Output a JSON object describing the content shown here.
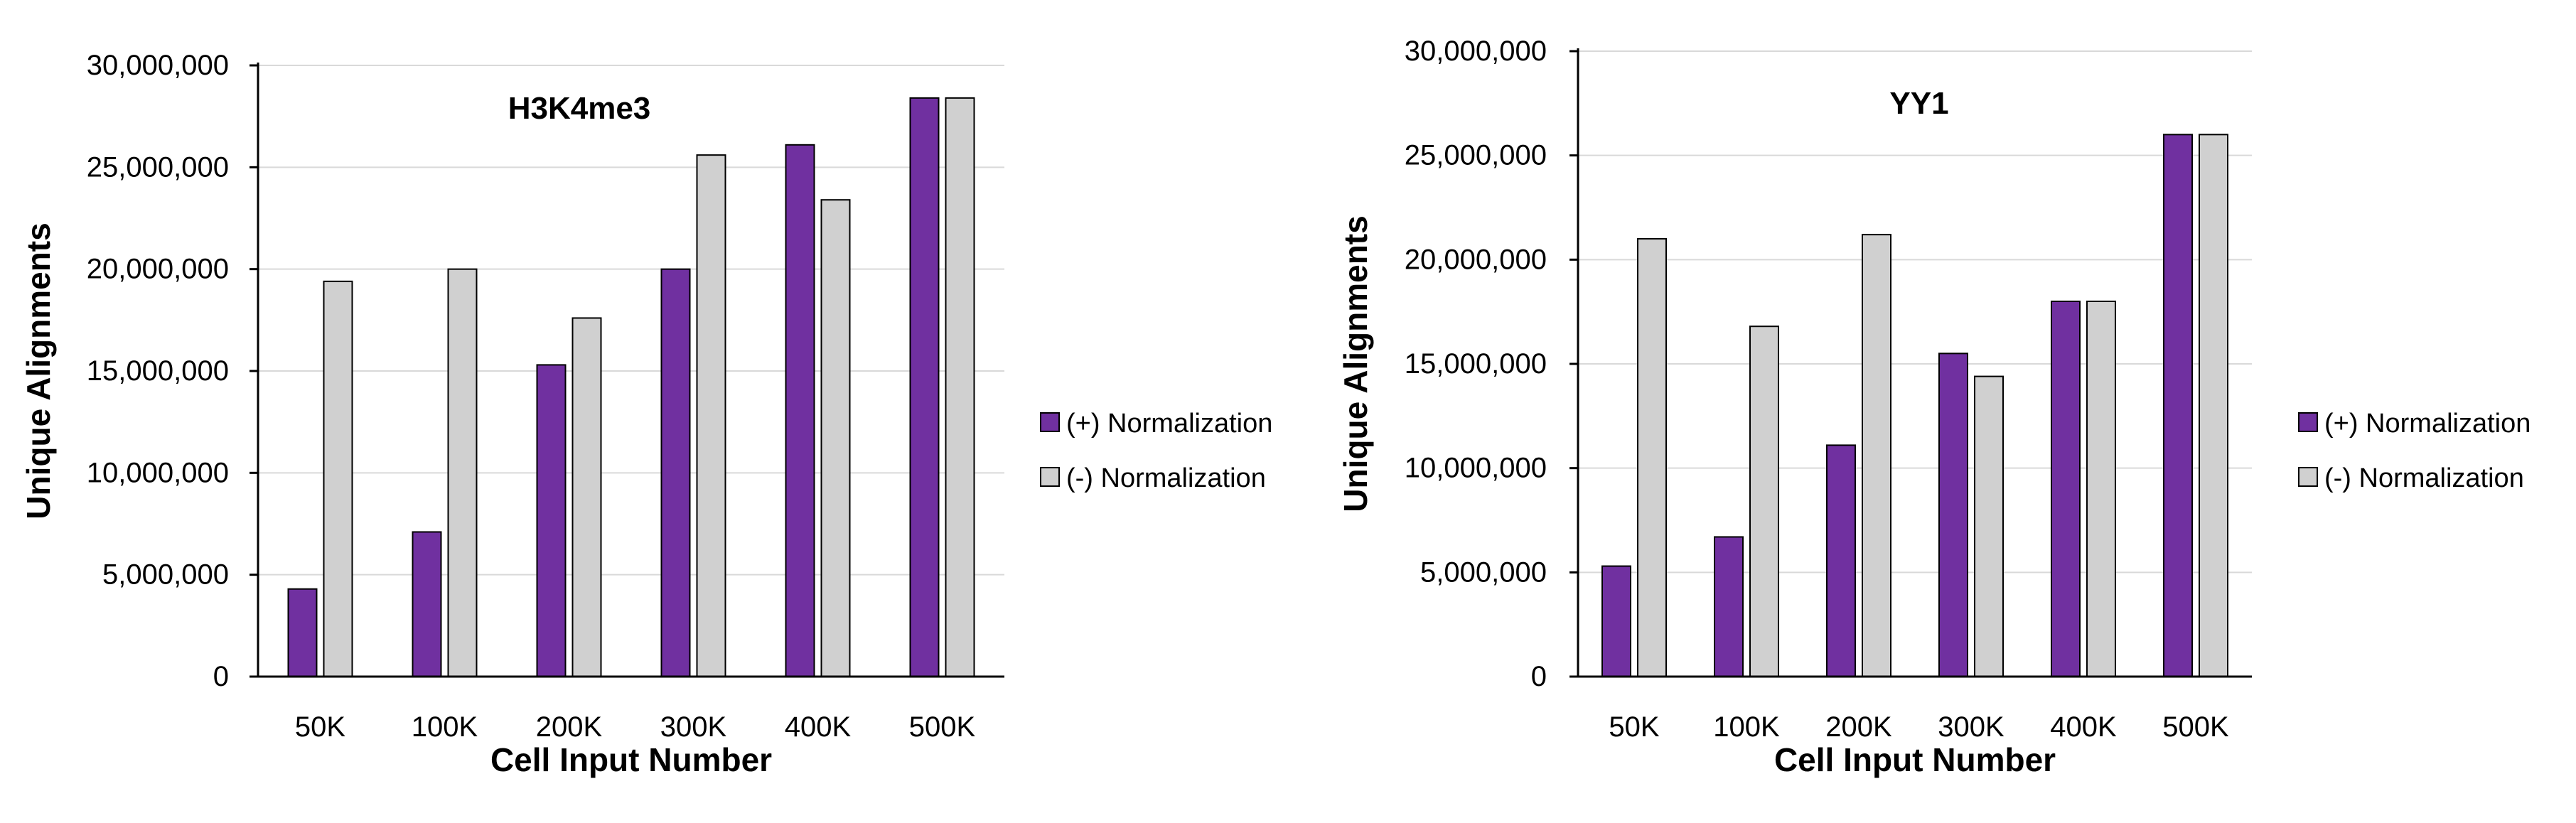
{
  "colors": {
    "plus": "#7030a0",
    "minus": "#d0d0d0",
    "bar_stroke": "#000000",
    "grid": "#d9d9d9",
    "axis": "#000000"
  },
  "chart_data": [
    {
      "type": "bar",
      "title": "H3K4me3",
      "xlabel": "Cell Input Number",
      "ylabel": "Unique Alignments",
      "ylim": [
        0,
        30000000
      ],
      "yticks": [
        "0",
        "5,000,000",
        "10,000,000",
        "15,000,000",
        "20,000,000",
        "25,000,000",
        "30,000,000"
      ],
      "grid": true,
      "legend": "right",
      "categories": [
        "50K",
        "100K",
        "200K",
        "300K",
        "400K",
        "500K"
      ],
      "series": [
        {
          "name": "(+) Normalization",
          "values": [
            4300000,
            7100000,
            15300000,
            20000000,
            26100000,
            28400000
          ]
        },
        {
          "name": "(-) Normalization",
          "values": [
            19400000,
            20000000,
            17600000,
            25600000,
            23400000,
            28400000
          ]
        }
      ]
    },
    {
      "type": "bar",
      "title": "YY1",
      "xlabel": "Cell Input Number",
      "ylabel": "Unique Alignments",
      "ylim": [
        0,
        30000000
      ],
      "yticks": [
        "0",
        "5,000,000",
        "10,000,000",
        "15,000,000",
        "20,000,000",
        "25,000,000",
        "30,000,000"
      ],
      "grid": true,
      "legend": "right",
      "categories": [
        "50K",
        "100K",
        "200K",
        "300K",
        "400K",
        "500K"
      ],
      "series": [
        {
          "name": "(+) Normalization",
          "values": [
            5300000,
            6700000,
            11100000,
            15500000,
            18000000,
            26000000
          ]
        },
        {
          "name": "(-) Normalization",
          "values": [
            21000000,
            16800000,
            21200000,
            14400000,
            18000000,
            26000000
          ]
        }
      ]
    }
  ]
}
